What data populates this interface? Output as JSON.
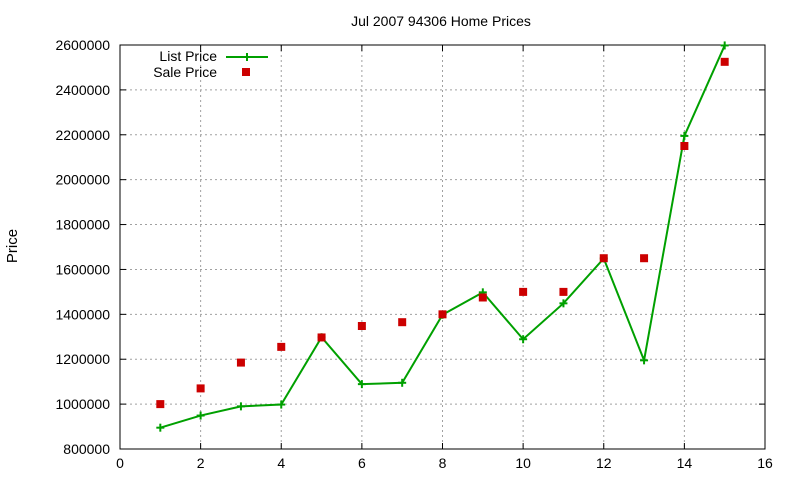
{
  "chart_data": {
    "type": "scatter",
    "title": "Jul 2007 94306 Home Prices",
    "xlabel": "",
    "ylabel": "Price",
    "xlim": [
      0,
      16
    ],
    "ylim": [
      800000,
      2600000
    ],
    "xticks": [
      0,
      2,
      4,
      6,
      8,
      10,
      12,
      14,
      16
    ],
    "yticks": [
      800000,
      1000000,
      1200000,
      1400000,
      1600000,
      1800000,
      2000000,
      2200000,
      2400000,
      2600000
    ],
    "grid": true,
    "legend_position": "top-left",
    "series": [
      {
        "name": "List Price",
        "style": "linespoints",
        "marker": "plus",
        "color": "#00a000",
        "x": [
          1,
          2,
          3,
          4,
          5,
          6,
          7,
          8,
          9,
          10,
          11,
          12,
          13,
          14,
          15
        ],
        "y": [
          895000,
          949000,
          990000,
          998000,
          1298000,
          1089000,
          1095000,
          1398000,
          1498000,
          1289000,
          1449000,
          1649000,
          1195000,
          2195000,
          2598000
        ]
      },
      {
        "name": "Sale Price",
        "style": "points",
        "marker": "square",
        "color": "#cc0000",
        "x": [
          1,
          2,
          3,
          4,
          5,
          6,
          7,
          8,
          9,
          10,
          11,
          12,
          13,
          14,
          15
        ],
        "y": [
          1000000,
          1070000,
          1185000,
          1255000,
          1297000,
          1348000,
          1365000,
          1400000,
          1475000,
          1500000,
          1500000,
          1650000,
          1650000,
          2150000,
          2525000
        ]
      }
    ]
  }
}
